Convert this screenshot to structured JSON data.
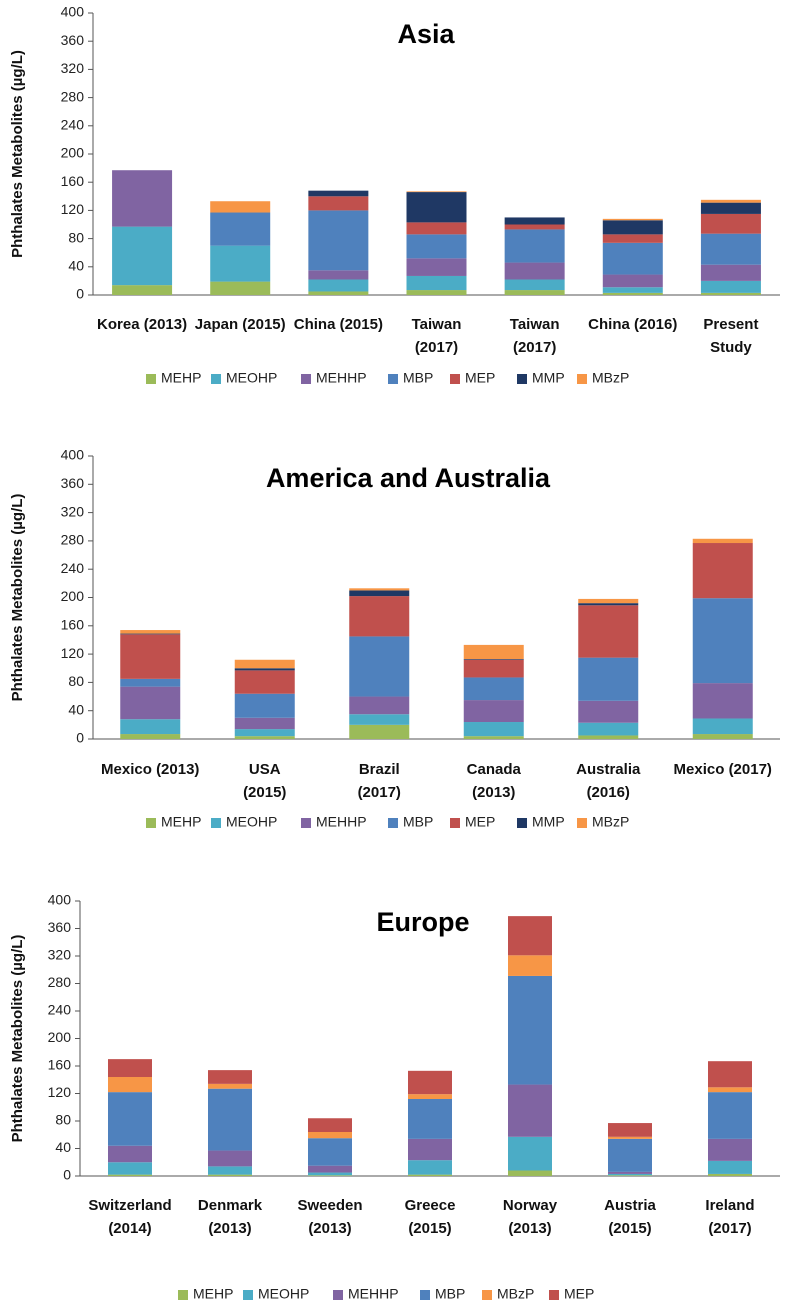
{
  "colors": {
    "MEHP": "#9bbb59",
    "MEOHP": "#4bacc6",
    "MEHHP": "#8064a2",
    "MBP": "#4f81bd",
    "MEP": "#c0504d",
    "MMP": "#1f3864",
    "MBzP": "#f79646"
  },
  "chart_data": [
    {
      "type": "bar",
      "stacked": true,
      "title": "Asia",
      "ylabel": "Phthalates Metabolites (µg/L)",
      "ylim": [
        0,
        400
      ],
      "yticks": [
        0,
        40,
        80,
        120,
        160,
        200,
        240,
        280,
        320,
        360,
        400
      ],
      "categories": [
        [
          "Korea (2013)"
        ],
        [
          "Japan (2015)"
        ],
        [
          "China (2015)"
        ],
        [
          "Taiwan",
          "(2017)"
        ],
        [
          "Taiwan",
          "(2017)"
        ],
        [
          "China (2016)"
        ],
        [
          "Present",
          "Study"
        ]
      ],
      "legend": [
        "MEHP",
        "MEOHP",
        "MEHHP",
        "MBP",
        "MEP",
        "MMP",
        "MBzP"
      ],
      "series": [
        {
          "name": "MEHP",
          "values": [
            14,
            19,
            5,
            7,
            7,
            3,
            3
          ]
        },
        {
          "name": "MEOHP",
          "values": [
            83,
            51,
            17,
            20,
            15,
            8,
            17
          ]
        },
        {
          "name": "MEHHP",
          "values": [
            80,
            0,
            13,
            25,
            24,
            18,
            23
          ]
        },
        {
          "name": "MBP",
          "values": [
            0,
            47,
            85,
            34,
            47,
            45,
            44
          ]
        },
        {
          "name": "MEP",
          "values": [
            0,
            0,
            20,
            17,
            7,
            12,
            28
          ]
        },
        {
          "name": "MMP",
          "values": [
            0,
            0,
            8,
            43,
            10,
            20,
            16
          ]
        },
        {
          "name": "MBzP",
          "values": [
            0,
            16,
            0,
            1,
            0,
            2,
            4
          ]
        }
      ]
    },
    {
      "type": "bar",
      "stacked": true,
      "title": "America and Australia",
      "ylabel": "Phthalates Metabolites (µg/L)",
      "ylim": [
        0,
        400
      ],
      "yticks": [
        0,
        40,
        80,
        120,
        160,
        200,
        240,
        280,
        320,
        360,
        400
      ],
      "categories": [
        [
          "Mexico (2013)"
        ],
        [
          "USA",
          "(2015)"
        ],
        [
          "Brazil",
          "(2017)"
        ],
        [
          "Canada",
          "(2013)"
        ],
        [
          "Australia",
          "(2016)"
        ],
        [
          "Mexico (2017)"
        ]
      ],
      "legend": [
        "MEHP",
        "MEOHP",
        "MEHHP",
        "MBP",
        "MEP",
        "MMP",
        "MBzP"
      ],
      "series": [
        {
          "name": "MEHP",
          "values": [
            7,
            4,
            20,
            4,
            5,
            7
          ]
        },
        {
          "name": "MEOHP",
          "values": [
            21,
            10,
            15,
            20,
            18,
            22
          ]
        },
        {
          "name": "MEHHP",
          "values": [
            46,
            16,
            25,
            31,
            31,
            50
          ]
        },
        {
          "name": "MBP",
          "values": [
            11,
            34,
            85,
            32,
            61,
            120
          ]
        },
        {
          "name": "MEP",
          "values": [
            63,
            33,
            57,
            25,
            74,
            78
          ]
        },
        {
          "name": "MMP",
          "values": [
            1,
            3,
            8,
            1,
            3,
            0
          ]
        },
        {
          "name": "MBzP",
          "values": [
            5,
            12,
            3,
            20,
            6,
            6
          ]
        }
      ]
    },
    {
      "type": "bar",
      "stacked": true,
      "title": "Europe",
      "ylabel": "Phthalates Metabolites (µg/L)",
      "ylim": [
        0,
        400
      ],
      "yticks": [
        0,
        40,
        80,
        120,
        160,
        200,
        240,
        280,
        320,
        360,
        400
      ],
      "categories": [
        [
          "Switzerland",
          "(2014)"
        ],
        [
          "Denmark",
          "(2013)"
        ],
        [
          "Sweeden",
          "(2013)"
        ],
        [
          "Greece",
          "(2015)"
        ],
        [
          "Norway",
          "(2013)"
        ],
        [
          "Austria",
          "(2015)"
        ],
        [
          "Ireland",
          "(2017)"
        ]
      ],
      "legend": [
        "MEHP",
        "MEOHP",
        "MEHHP",
        "MBP",
        "MBzP",
        "MEP"
      ],
      "series": [
        {
          "name": "MEHP",
          "values": [
            2,
            2,
            1,
            2,
            8,
            1,
            3
          ]
        },
        {
          "name": "MEOHP",
          "values": [
            18,
            12,
            4,
            21,
            49,
            2,
            19
          ]
        },
        {
          "name": "MEHHP",
          "values": [
            24,
            23,
            10,
            31,
            76,
            3,
            32
          ]
        },
        {
          "name": "MBP",
          "values": [
            78,
            90,
            40,
            58,
            158,
            48,
            68
          ]
        },
        {
          "name": "MBzP",
          "values": [
            22,
            7,
            9,
            7,
            30,
            3,
            7
          ]
        },
        {
          "name": "MEP",
          "values": [
            26,
            20,
            20,
            34,
            57,
            20,
            38
          ]
        }
      ]
    }
  ]
}
